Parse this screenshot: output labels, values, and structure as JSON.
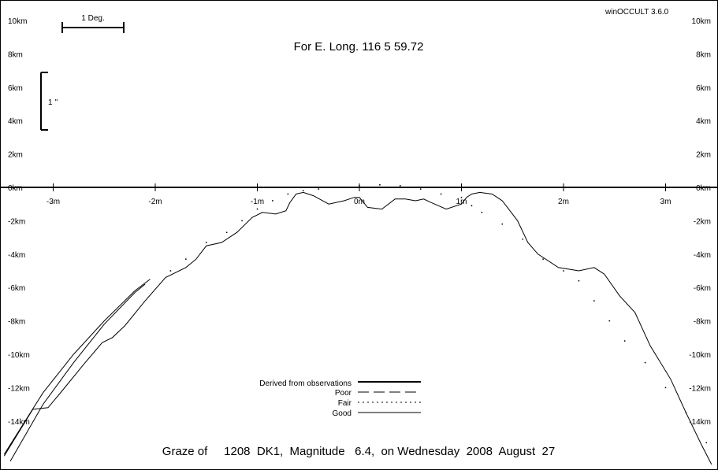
{
  "app_version": "winOCCULT 3.6.0",
  "header": "For E. Long.  116  5 59.72",
  "footer": "Graze of     1208  DK1,  Magnitude   6.4,  on Wednesday  2008  August  27",
  "scale_bars": {
    "degree_label": "1 Deg.",
    "arcsec_label": "1 ''"
  },
  "legend": {
    "derived": "Derived from observations",
    "poor": "Poor",
    "fair": "Fair",
    "good": "Good"
  },
  "chart_data": {
    "type": "line",
    "xlabel": "",
    "ylabel": "",
    "x_unit": "m",
    "y_unit": "km",
    "xlim": [
      -3.5,
      3.45
    ],
    "ylim": [
      -17,
      11
    ],
    "x_ticks": [
      {
        "value": -3,
        "label": "-3m"
      },
      {
        "value": -2,
        "label": "-2m"
      },
      {
        "value": -1,
        "label": "-1m"
      },
      {
        "value": 0,
        "label": "0m"
      },
      {
        "value": 1,
        "label": "1m"
      },
      {
        "value": 2,
        "label": "2m"
      },
      {
        "value": 3,
        "label": "3m"
      }
    ],
    "y_ticks": [
      {
        "value": 10,
        "label": "10km"
      },
      {
        "value": 8,
        "label": "8km"
      },
      {
        "value": 6,
        "label": "6km"
      },
      {
        "value": 4,
        "label": "4km"
      },
      {
        "value": 2,
        "label": "2km"
      },
      {
        "value": 0,
        "label": "0km"
      },
      {
        "value": -2,
        "label": "-2km"
      },
      {
        "value": -4,
        "label": "-4km"
      },
      {
        "value": -6,
        "label": "-6km"
      },
      {
        "value": -8,
        "label": "-8km"
      },
      {
        "value": -10,
        "label": "-10km"
      },
      {
        "value": -12,
        "label": "-12km"
      },
      {
        "value": -14,
        "label": "-14km"
      }
    ],
    "series": [
      {
        "name": "Good",
        "style": "solid",
        "points": [
          [
            -3.48,
            -16.1
          ],
          [
            -3.2,
            -13.3
          ],
          [
            -3.05,
            -13.2
          ],
          [
            -2.9,
            -12.1
          ],
          [
            -2.7,
            -10.6
          ],
          [
            -2.52,
            -9.3
          ],
          [
            -2.42,
            -9.0
          ],
          [
            -2.3,
            -8.3
          ],
          [
            -2.1,
            -6.8
          ],
          [
            -1.9,
            -5.4
          ],
          [
            -1.7,
            -4.8
          ],
          [
            -1.6,
            -4.3
          ],
          [
            -1.5,
            -3.5
          ],
          [
            -1.35,
            -3.3
          ],
          [
            -1.2,
            -2.7
          ],
          [
            -1.05,
            -1.8
          ],
          [
            -0.95,
            -1.5
          ],
          [
            -0.82,
            -1.6
          ],
          [
            -0.72,
            -1.4
          ],
          [
            -0.68,
            -0.9
          ],
          [
            -0.62,
            -0.4
          ],
          [
            -0.55,
            -0.3
          ],
          [
            -0.45,
            -0.5
          ],
          [
            -0.3,
            -1.0
          ],
          [
            -0.15,
            -0.8
          ],
          [
            -0.05,
            -0.6
          ],
          [
            0.0,
            -0.6
          ],
          [
            0.08,
            -1.2
          ],
          [
            0.22,
            -1.3
          ],
          [
            0.35,
            -0.7
          ],
          [
            0.45,
            -0.7
          ],
          [
            0.55,
            -0.8
          ],
          [
            0.63,
            -0.7
          ],
          [
            0.7,
            -0.9
          ],
          [
            0.85,
            -1.3
          ],
          [
            1.0,
            -1.0
          ],
          [
            1.05,
            -0.6
          ],
          [
            1.1,
            -0.4
          ],
          [
            1.18,
            -0.3
          ],
          [
            1.3,
            -0.4
          ],
          [
            1.4,
            -0.8
          ],
          [
            1.55,
            -2.0
          ],
          [
            1.65,
            -3.3
          ],
          [
            1.75,
            -4.0
          ],
          [
            1.95,
            -4.8
          ],
          [
            2.15,
            -5.0
          ],
          [
            2.3,
            -4.8
          ],
          [
            2.4,
            -5.2
          ],
          [
            2.55,
            -6.5
          ],
          [
            2.7,
            -7.5
          ],
          [
            2.85,
            -9.5
          ],
          [
            3.05,
            -11.5
          ],
          [
            3.2,
            -13.5
          ],
          [
            3.35,
            -15.4
          ],
          [
            3.45,
            -16.6
          ]
        ]
      },
      {
        "name": "Good",
        "style": "solid",
        "points": [
          [
            -3.42,
            -16.4
          ],
          [
            -3.1,
            -13.0
          ],
          [
            -2.8,
            -10.5
          ],
          [
            -2.5,
            -8.2
          ],
          [
            -2.2,
            -6.3
          ],
          [
            -2.1,
            -5.8
          ]
        ]
      },
      {
        "name": "Good",
        "style": "solid",
        "points": [
          [
            -3.48,
            -16.0
          ],
          [
            -3.1,
            -12.3
          ],
          [
            -2.8,
            -10.0
          ],
          [
            -2.5,
            -8.0
          ],
          [
            -2.2,
            -6.2
          ],
          [
            -2.05,
            -5.5
          ]
        ]
      },
      {
        "name": "Fair",
        "style": "dotted",
        "points": [
          [
            -1.85,
            -5.0
          ],
          [
            -1.7,
            -4.3
          ],
          [
            -1.5,
            -3.3
          ],
          [
            -1.3,
            -2.7
          ],
          [
            -1.15,
            -2.0
          ],
          [
            -1.0,
            -1.3
          ],
          [
            -0.85,
            -0.8
          ],
          [
            -0.7,
            -0.4
          ],
          [
            -0.55,
            -0.2
          ],
          [
            -0.4,
            -0.1
          ],
          [
            -0.2,
            0.0
          ],
          [
            0.0,
            0.1
          ],
          [
            0.2,
            0.15
          ],
          [
            0.4,
            0.1
          ],
          [
            0.6,
            -0.1
          ],
          [
            0.8,
            -0.4
          ],
          [
            1.0,
            -0.6
          ],
          [
            1.1,
            -1.1
          ],
          [
            1.2,
            -1.5
          ],
          [
            1.4,
            -2.2
          ],
          [
            1.6,
            -3.1
          ],
          [
            1.8,
            -4.3
          ],
          [
            2.0,
            -5.0
          ],
          [
            2.15,
            -5.6
          ],
          [
            2.3,
            -6.8
          ],
          [
            2.45,
            -8.0
          ],
          [
            2.6,
            -9.2
          ],
          [
            2.8,
            -10.5
          ],
          [
            3.0,
            -12.0
          ],
          [
            3.2,
            -13.5
          ],
          [
            3.4,
            -15.3
          ]
        ]
      }
    ]
  }
}
